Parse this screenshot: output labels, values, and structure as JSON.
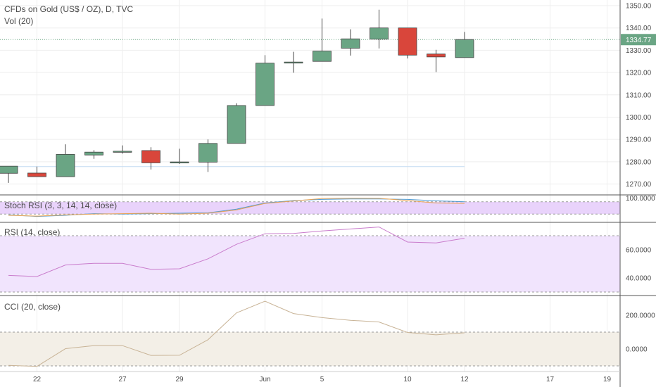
{
  "main": {
    "title": "CFDs on Gold (US$ / OZ), D, TVC",
    "volume_label": "Vol (20)"
  },
  "panes": {
    "stoch_rsi": {
      "label": "Stoch RSI (3, 3, 14, 14, close)",
      "ticks": [
        "100.0000"
      ]
    },
    "rsi": {
      "label": "RSI (14, close)",
      "ticks": [
        "60.0000",
        "40.0000"
      ]
    },
    "cci": {
      "label": "CCI (20, close)",
      "ticks": [
        "200.0000",
        "0.0000"
      ]
    }
  },
  "colors": {
    "up": "#6aa584",
    "down": "#d9463b",
    "stoch_band": "#e9d3fb",
    "rsi_band": "#f1e4fd",
    "cci_band": "#f3efe7",
    "rsi_line": "#c97ccc",
    "cci_line": "#c8b396",
    "price_label_bg": "#6aa584"
  },
  "chart_data": [
    {
      "type": "candlestick",
      "title": "CFDs on Gold (US$ / OZ), D, TVC",
      "ylim": [
        1265,
        1354
      ],
      "yticks": [
        1270,
        1280,
        1290,
        1300,
        1310,
        1320,
        1330,
        1340,
        1350
      ],
      "ytick_labels": [
        "1270.00",
        "1280.00",
        "1290.00",
        "1300.00",
        "1310.00",
        "1320.00",
        "1330.00",
        "1340.00",
        "1350.00"
      ],
      "last_price": 1334.77,
      "last_price_label": "1334.77",
      "x_tick_labels": [
        "22",
        "27",
        "29",
        "Jun",
        "5",
        "10",
        "12",
        "17",
        "19"
      ],
      "candles": [
        {
          "i": 0,
          "open": 1274.8,
          "high": 1278.0,
          "low": 1270.5,
          "close": 1278.0
        },
        {
          "i": 1,
          "open": 1274.9,
          "high": 1277.8,
          "low": 1273.3,
          "close": 1273.3
        },
        {
          "i": 2,
          "open": 1273.3,
          "high": 1287.8,
          "low": 1273.3,
          "close": 1283.3
        },
        {
          "i": 3,
          "open": 1283.0,
          "high": 1285.2,
          "low": 1281.3,
          "close": 1284.3
        },
        {
          "i": 4,
          "open": 1284.3,
          "high": 1287.3,
          "low": 1283.6,
          "close": 1284.7
        },
        {
          "i": 5,
          "open": 1285.0,
          "high": 1286.5,
          "low": 1276.5,
          "close": 1279.5
        },
        {
          "i": 6,
          "open": 1279.5,
          "high": 1285.8,
          "low": 1279.0,
          "close": 1279.9
        },
        {
          "i": 7,
          "open": 1279.8,
          "high": 1290.0,
          "low": 1275.4,
          "close": 1288.2
        },
        {
          "i": 8,
          "open": 1288.2,
          "high": 1306.2,
          "low": 1288.2,
          "close": 1305.2
        },
        {
          "i": 9,
          "open": 1305.2,
          "high": 1327.8,
          "low": 1305.2,
          "close": 1324.2
        },
        {
          "i": 10,
          "open": 1324.5,
          "high": 1329.3,
          "low": 1319.9,
          "close": 1324.7
        },
        {
          "i": 11,
          "open": 1325.0,
          "high": 1344.2,
          "low": 1325.0,
          "close": 1329.6
        },
        {
          "i": 12,
          "open": 1330.9,
          "high": 1339.4,
          "low": 1327.6,
          "close": 1335.1
        },
        {
          "i": 13,
          "open": 1335.0,
          "high": 1348.2,
          "low": 1330.8,
          "close": 1340.0
        },
        {
          "i": 14,
          "open": 1340.0,
          "high": 1340.0,
          "low": 1326.3,
          "close": 1327.8
        },
        {
          "i": 15,
          "open": 1328.3,
          "high": 1330.2,
          "low": 1320.2,
          "close": 1327.0
        },
        {
          "i": 16,
          "open": 1326.7,
          "high": 1338.2,
          "low": 1326.7,
          "close": 1334.8
        }
      ]
    },
    {
      "type": "line",
      "title": "Stoch RSI (3, 3, 14, 14, close)",
      "ylim": [
        0,
        100
      ],
      "band": [
        20,
        80
      ],
      "series": [
        {
          "values": [
            16,
            8,
            14,
            22,
            20,
            22,
            24,
            26,
            44,
            74,
            86,
            92,
            94,
            94,
            92,
            85,
            80
          ]
        },
        {
          "values": [
            14,
            10,
            16,
            20,
            22,
            24,
            20,
            24,
            40,
            72,
            84,
            96,
            98,
            97,
            86,
            74,
            72
          ]
        }
      ]
    },
    {
      "type": "line",
      "title": "RSI (14, close)",
      "ylim": [
        30,
        78
      ],
      "yticks": [
        40,
        60
      ],
      "band": [
        30,
        70
      ],
      "series": [
        {
          "values": [
            41.8,
            41.0,
            49.2,
            50.4,
            50.4,
            46.1,
            46.5,
            53.6,
            63.9,
            71.4,
            71.6,
            73.4,
            74.8,
            76.2,
            65.5,
            64.9,
            68.2
          ]
        }
      ]
    },
    {
      "type": "line",
      "title": "CCI (20, close)",
      "ylim": [
        -120,
        300
      ],
      "yticks": [
        0,
        200
      ],
      "band": [
        -100,
        100
      ],
      "series": [
        {
          "values": [
            -97,
            -103,
            2,
            20,
            20,
            -38,
            -37,
            55,
            214,
            283,
            210,
            186,
            170,
            160,
            98,
            84,
            96
          ]
        }
      ]
    }
  ]
}
